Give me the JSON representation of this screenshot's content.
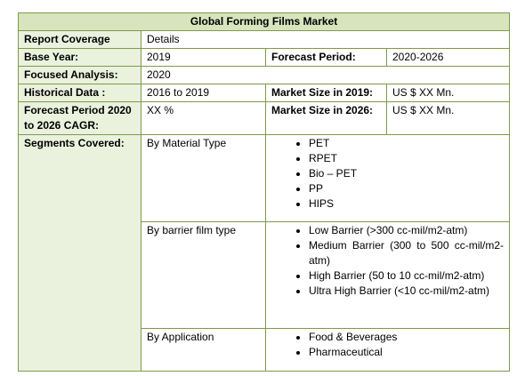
{
  "table": {
    "title": "Global Forming Films Market",
    "rows": [
      [
        "Report Coverage",
        "Details"
      ],
      [
        "Base Year:",
        "2019",
        "Forecast Period:",
        "2020-2026"
      ],
      [
        "Focused Analysis:",
        "2020"
      ],
      [
        "Historical Data :",
        "2016 to 2019",
        "Market Size in 2019:",
        "US $ XX Mn."
      ],
      [
        "Forecast Period 2020 to 2026 CAGR:",
        "XX %",
        "Market Size in 2026:",
        "US $ XX Mn."
      ]
    ],
    "segments": {
      "label": "Segments Covered:",
      "groups": [
        {
          "name": "By Material Type",
          "items": [
            "PET",
            "RPET",
            "Bio – PET",
            "PP",
            "HIPS"
          ]
        },
        {
          "name": "By barrier film type",
          "items": [
            "Low Barrier (>300 cc-mil/m2-atm)",
            "Medium Barrier (300 to 500 cc-mil/m2-atm)",
            "High Barrier (50 to 10 cc-mil/m2-atm)",
            "Ultra High Barrier (<10 cc-mil/m2-atm)"
          ]
        },
        {
          "name": "By Application",
          "items": [
            "Food & Beverages",
            "Pharmaceutical"
          ]
        }
      ]
    }
  }
}
